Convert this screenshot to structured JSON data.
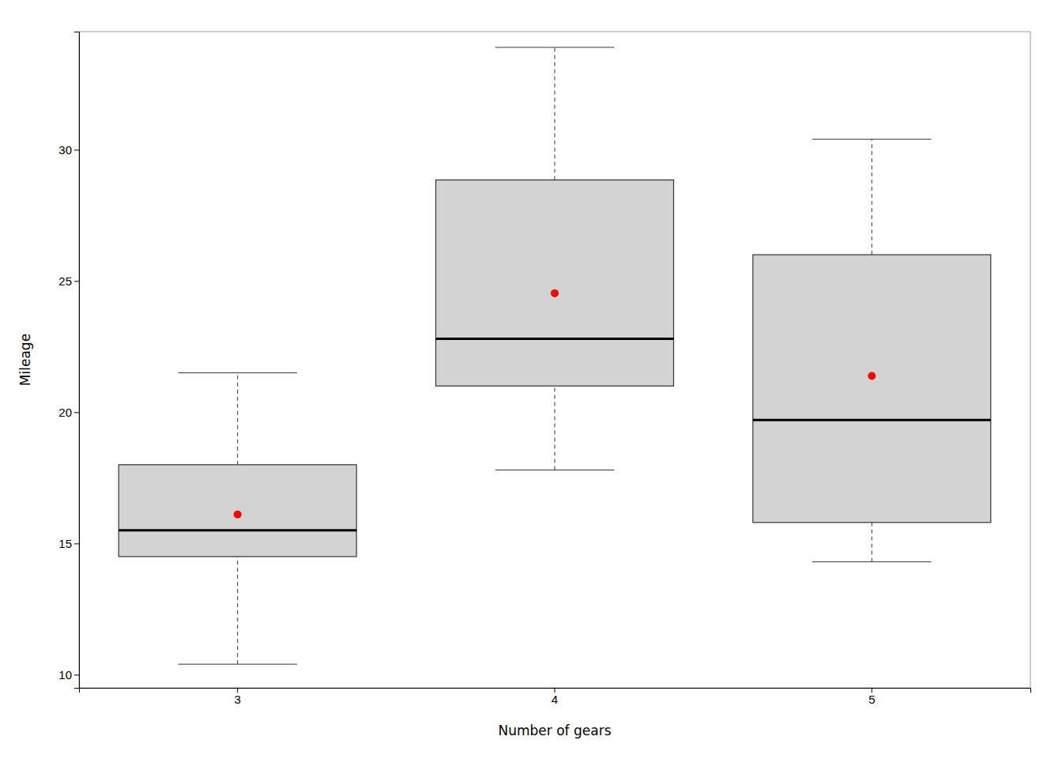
{
  "chart_data": {
    "type": "box",
    "xlabel": "Number of gears",
    "ylabel": "Mileage",
    "categories": [
      "3",
      "4",
      "5"
    ],
    "boxes": [
      {
        "q1": 14.5,
        "median": 15.5,
        "q3": 18.0,
        "whisker_low": 10.4,
        "whisker_high": 21.5,
        "mean": 16.107
      },
      {
        "q1": 21.0,
        "median": 22.8,
        "q3": 28.85,
        "whisker_low": 17.8,
        "whisker_high": 33.9,
        "mean": 24.533
      },
      {
        "q1": 15.8,
        "median": 19.7,
        "q3": 26.0,
        "whisker_low": 14.3,
        "whisker_high": 30.4,
        "mean": 21.38
      }
    ],
    "color": "#d3d3d3",
    "ylim": [
      9.5,
      34.5
    ],
    "yticks": [
      10,
      15,
      20,
      25,
      30
    ],
    "grid": false
  }
}
